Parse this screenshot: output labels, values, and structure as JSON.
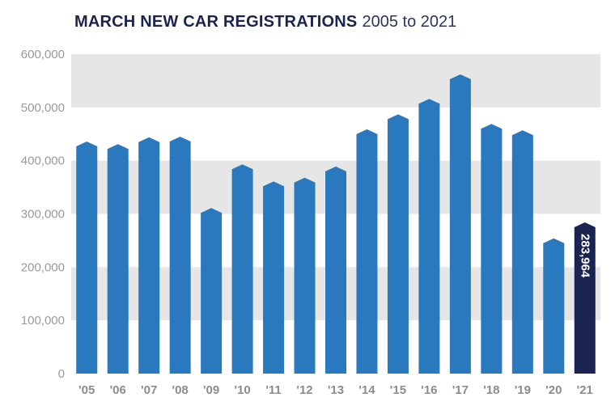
{
  "header": {
    "title": "MARCH NEW CAR REGISTRATIONS",
    "subtitle": "2005 to 2021"
  },
  "chart_data": {
    "type": "bar",
    "title": "MARCH NEW CAR REGISTRATIONS",
    "subtitle": "2005 to 2021",
    "categories": [
      "'05",
      "'06",
      "'07",
      "'08",
      "'09",
      "'10",
      "'11",
      "'12",
      "'13",
      "'14",
      "'15",
      "'16",
      "'17",
      "'18",
      "'19",
      "'20",
      "'21"
    ],
    "values": [
      436000,
      431000,
      444000,
      445000,
      311000,
      393000,
      361000,
      368000,
      389000,
      459000,
      487000,
      516000,
      562000,
      469000,
      457000,
      254000,
      283964
    ],
    "y_ticks": [
      "0",
      "100,000",
      "200,000",
      "300,000",
      "400,000",
      "500,000",
      "600,000"
    ],
    "ylim": [
      0,
      600000
    ],
    "grid": "alternating horizontal bands",
    "xlabel": "",
    "ylabel": "",
    "annotations": [
      {
        "category": "'21",
        "text": "283,964"
      }
    ],
    "colors": {
      "bar": "#2a78be",
      "highlight_bar": "#1b2451",
      "band": "#e6e6e6"
    }
  }
}
